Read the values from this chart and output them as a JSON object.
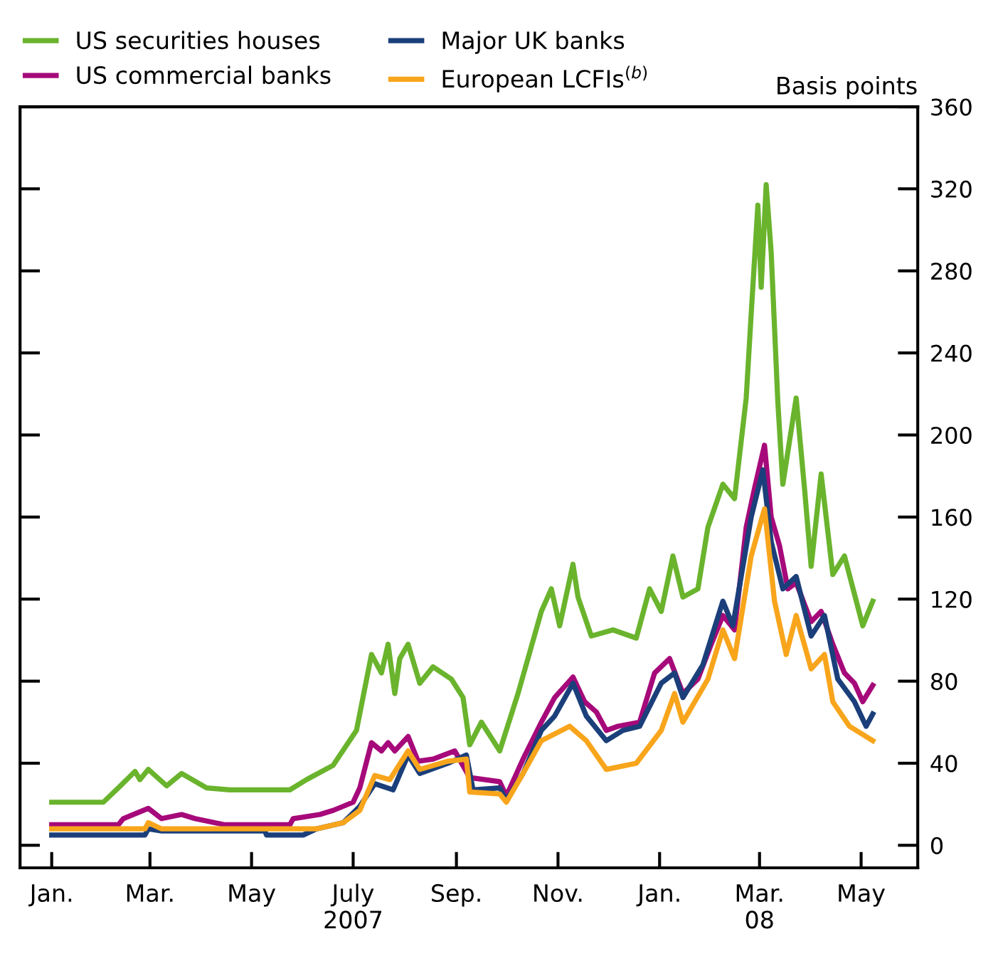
{
  "chart_data": {
    "type": "line",
    "ylabel": "Basis points",
    "legend": "top left",
    "grid": false,
    "marker": "none",
    "line_style": "solid",
    "xlim": [
      "2006-12-13",
      "2008-06-04"
    ],
    "ylim": [
      -11,
      360
    ],
    "xticks": [
      {
        "value": "2007-01-01",
        "label": "Jan."
      },
      {
        "value": "2007-03-01",
        "label": "Mar."
      },
      {
        "value": "2007-05-01",
        "label": "May"
      },
      {
        "value": "2007-07-01",
        "label": "July\n2007"
      },
      {
        "value": "2007-09-01",
        "label": "Sep."
      },
      {
        "value": "2007-11-01",
        "label": "Nov."
      },
      {
        "value": "2008-01-01",
        "label": "Jan."
      },
      {
        "value": "2008-03-01",
        "label": "Mar.\n08"
      },
      {
        "value": "2008-05-01",
        "label": "May"
      }
    ],
    "yticks": [
      0,
      40,
      80,
      120,
      160,
      200,
      240,
      280,
      320,
      360
    ],
    "series": [
      {
        "name": "US securities houses",
        "color": "#6ab42d",
        "x": [
          "2007-01-01",
          "2007-02-01",
          "2007-02-10",
          "2007-02-20",
          "2007-02-23",
          "2007-02-28",
          "2007-03-11",
          "2007-03-20",
          "2007-04-04",
          "2007-04-18",
          "2007-05-24",
          "2007-06-03",
          "2007-06-19",
          "2007-07-03",
          "2007-07-12",
          "2007-07-18",
          "2007-07-22",
          "2007-07-26",
          "2007-07-29",
          "2007-08-03",
          "2007-08-10",
          "2007-08-18",
          "2007-08-29",
          "2007-09-05",
          "2007-09-09",
          "2007-09-16",
          "2007-09-27",
          "2007-10-08",
          "2007-10-22",
          "2007-10-28",
          "2007-11-02",
          "2007-11-10",
          "2007-11-13",
          "2007-11-21",
          "2007-12-04",
          "2007-12-18",
          "2007-12-26",
          "2008-01-02",
          "2008-01-09",
          "2008-01-15",
          "2008-01-24",
          "2008-01-30",
          "2008-02-08",
          "2008-02-15",
          "2008-02-19",
          "2008-02-22",
          "2008-02-25",
          "2008-02-29",
          "2008-03-02",
          "2008-03-05",
          "2008-03-08",
          "2008-03-12",
          "2008-03-15",
          "2008-03-23",
          "2008-03-28",
          "2008-04-01",
          "2008-04-07",
          "2008-04-14",
          "2008-04-21",
          "2008-05-02",
          "2008-05-08"
        ],
        "values": [
          21,
          21,
          28,
          36,
          32,
          37,
          29,
          35,
          28,
          27,
          27,
          32,
          39,
          56,
          93,
          84,
          98,
          74,
          91,
          98,
          79,
          87,
          81,
          72,
          49,
          60,
          46,
          74,
          114,
          125,
          107,
          137,
          121,
          102,
          105,
          101,
          125,
          114,
          141,
          121,
          125,
          155,
          176,
          169,
          197,
          218,
          259,
          312,
          272,
          322,
          289,
          216,
          176,
          218,
          174,
          136,
          181,
          132,
          141,
          107,
          119
        ]
      },
      {
        "name": "US commercial banks",
        "color": "#a6097a",
        "x": [
          "2007-01-01",
          "2007-02-10",
          "2007-02-13",
          "2007-02-28",
          "2007-03-08",
          "2007-03-20",
          "2007-03-28",
          "2007-04-15",
          "2007-05-24",
          "2007-05-26",
          "2007-06-11",
          "2007-06-19",
          "2007-07-01",
          "2007-07-05",
          "2007-07-12",
          "2007-07-18",
          "2007-07-22",
          "2007-07-26",
          "2007-08-03",
          "2007-08-09",
          "2007-08-18",
          "2007-08-31",
          "2007-09-09",
          "2007-09-27",
          "2007-10-01",
          "2007-10-11",
          "2007-10-22",
          "2007-10-30",
          "2007-11-10",
          "2007-11-17",
          "2007-11-24",
          "2007-11-30",
          "2007-12-07",
          "2007-12-20",
          "2007-12-29",
          "2008-01-07",
          "2008-01-15",
          "2008-01-24",
          "2008-02-01",
          "2008-02-08",
          "2008-02-15",
          "2008-02-22",
          "2008-02-27",
          "2008-03-04",
          "2008-03-08",
          "2008-03-13",
          "2008-03-18",
          "2008-03-23",
          "2008-04-01",
          "2008-04-07",
          "2008-04-14",
          "2008-04-21",
          "2008-04-27",
          "2008-05-02",
          "2008-05-08"
        ],
        "values": [
          10,
          10,
          13,
          18,
          13,
          15,
          13,
          10,
          10,
          13,
          15,
          17,
          21,
          28,
          50,
          46,
          50,
          46,
          53,
          41,
          42,
          46,
          33,
          31,
          24,
          42,
          60,
          72,
          82,
          70,
          65,
          56,
          58,
          60,
          84,
          91,
          74,
          81,
          98,
          112,
          105,
          155,
          174,
          195,
          160,
          146,
          125,
          128,
          109,
          114,
          98,
          84,
          79,
          70,
          78
        ]
      },
      {
        "name": "Major UK banks",
        "color": "#1b3f7a",
        "x": [
          "2007-01-01",
          "2007-02-26",
          "2007-02-28",
          "2007-03-08",
          "2007-05-09",
          "2007-05-10",
          "2007-06-01",
          "2007-06-09",
          "2007-06-25",
          "2007-07-05",
          "2007-07-14",
          "2007-07-25",
          "2007-08-03",
          "2007-08-10",
          "2007-08-27",
          "2007-09-07",
          "2007-09-11",
          "2007-09-27",
          "2007-10-01",
          "2007-10-11",
          "2007-10-22",
          "2007-10-30",
          "2007-11-10",
          "2007-11-18",
          "2007-11-30",
          "2007-12-10",
          "2007-12-20",
          "2008-01-02",
          "2008-01-10",
          "2008-01-15",
          "2008-01-27",
          "2008-02-08",
          "2008-02-14",
          "2008-02-25",
          "2008-03-03",
          "2008-03-08",
          "2008-03-15",
          "2008-03-23",
          "2008-04-01",
          "2008-04-09",
          "2008-04-17",
          "2008-04-27",
          "2008-05-04",
          "2008-05-08"
        ],
        "values": [
          5,
          5,
          8,
          7,
          7,
          5,
          5,
          8,
          11,
          19,
          30,
          27,
          44,
          35,
          40,
          44,
          27,
          28,
          22,
          35,
          56,
          63,
          79,
          63,
          51,
          56,
          58,
          79,
          84,
          72,
          88,
          119,
          107,
          160,
          183,
          148,
          125,
          131,
          102,
          112,
          81,
          70,
          58,
          64
        ]
      },
      {
        "name": "European LCFIs$^{(b)}$",
        "color": "#f8a51c",
        "x": [
          "2007-01-01",
          "2007-02-26",
          "2007-02-28",
          "2007-03-08",
          "2007-06-09",
          "2007-06-25",
          "2007-07-05",
          "2007-07-14",
          "2007-07-23",
          "2007-08-03",
          "2007-08-10",
          "2007-08-27",
          "2007-09-07",
          "2007-09-09",
          "2007-09-27",
          "2007-10-01",
          "2007-10-11",
          "2007-10-22",
          "2007-11-08",
          "2007-11-18",
          "2007-11-30",
          "2007-12-18",
          "2008-01-02",
          "2008-01-10",
          "2008-01-15",
          "2008-01-30",
          "2008-02-08",
          "2008-02-15",
          "2008-02-25",
          "2008-03-04",
          "2008-03-10",
          "2008-03-17",
          "2008-03-23",
          "2008-04-01",
          "2008-04-09",
          "2008-04-14",
          "2008-04-24",
          "2008-05-08"
        ],
        "values": [
          8,
          8,
          11,
          8,
          8,
          11,
          17,
          34,
          32,
          46,
          37,
          41,
          42,
          26,
          25,
          21,
          35,
          51,
          58,
          51,
          37,
          40,
          56,
          74,
          60,
          81,
          105,
          91,
          141,
          164,
          119,
          93,
          112,
          86,
          93,
          70,
          58,
          51
        ]
      }
    ]
  }
}
